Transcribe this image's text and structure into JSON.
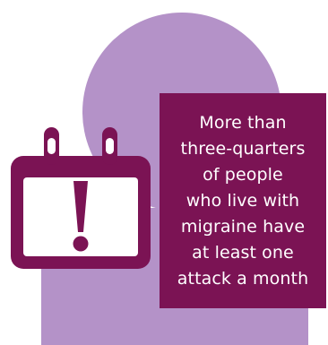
{
  "colors": {
    "background": "#ffffff",
    "person": "#b492c8",
    "calendar": "#7b1354",
    "calendar_face": "#ffffff",
    "box": "#7b1354",
    "text": "#ffffff"
  },
  "illustration": {
    "person_icon": "person-silhouette-icon",
    "calendar_icon": "calendar-alert-icon"
  },
  "message": {
    "lines": [
      "More than",
      "three-quarters",
      "of people",
      "who live with",
      "migraine have",
      "at least one",
      "attack a month"
    ]
  }
}
